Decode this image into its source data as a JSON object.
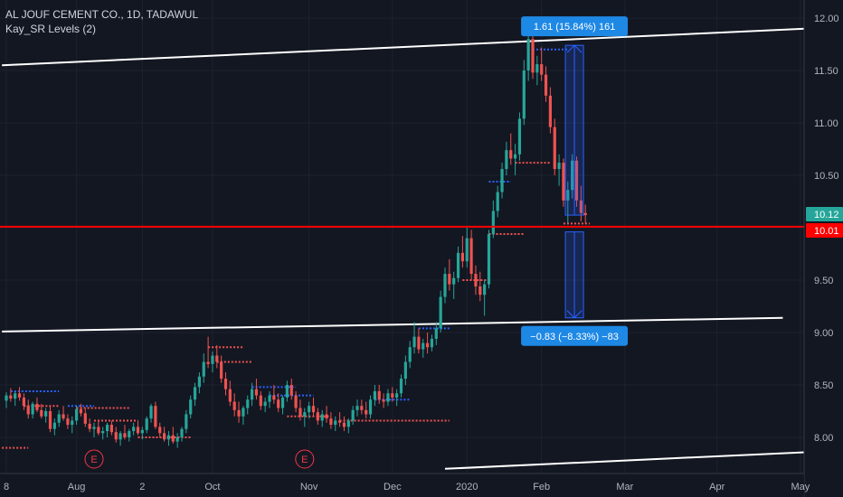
{
  "header": {
    "symbol_line": "AL JOUF CEMENT CO., 1D, TADAWUL",
    "indicator_line": "Kay_SR Levels (2)"
  },
  "price_tags": {
    "last": "10.12",
    "level": "10.01"
  },
  "measure_boxes": {
    "up": "1.61 (15.84%) 161",
    "down": "−0.83 (−8.33%) −83"
  },
  "earnings_marker": "E",
  "colors": {
    "background": "#131722",
    "up": "#26a69a",
    "down": "#ef5350",
    "level_line": "#ff0000",
    "trend_line": "#ffffff",
    "measure": "#2962ff",
    "sr_support": "#ef5350",
    "sr_resistance": "#2962ff"
  },
  "chart_data": {
    "type": "candlestick",
    "ylim": [
      7.72,
      12.12
    ],
    "yticks": [
      "8.00",
      "8.50",
      "9.00",
      "9.50",
      "10.00",
      "10.50",
      "11.00",
      "11.50",
      "12.00"
    ],
    "ytick_values": [
      8.0,
      8.5,
      9.0,
      9.5,
      10.0,
      10.5,
      11.0,
      11.5,
      12.0
    ],
    "xticks": [
      "8",
      "Aug",
      "2",
      "Oct",
      "Nov",
      "Dec",
      "2020",
      "Feb",
      "Mar",
      "Apr",
      "May"
    ],
    "xtick_days": [
      0,
      16,
      31,
      47,
      69,
      88,
      105,
      122,
      141,
      162,
      181
    ],
    "candles": [
      [
        0,
        8.35,
        8.43,
        8.28,
        8.4
      ],
      [
        1,
        8.4,
        8.47,
        8.34,
        8.37
      ],
      [
        2,
        8.37,
        8.44,
        8.3,
        8.42
      ],
      [
        3,
        8.42,
        8.48,
        8.35,
        8.38
      ],
      [
        4,
        8.38,
        8.42,
        8.26,
        8.3
      ],
      [
        5,
        8.3,
        8.36,
        8.18,
        8.22
      ],
      [
        6,
        8.22,
        8.34,
        8.18,
        8.32
      ],
      [
        7,
        8.32,
        8.38,
        8.24,
        8.26
      ],
      [
        8,
        8.26,
        8.32,
        8.18,
        8.2
      ],
      [
        9,
        8.2,
        8.28,
        8.14,
        8.25
      ],
      [
        10,
        8.25,
        8.3,
        8.05,
        8.08
      ],
      [
        11,
        8.08,
        8.18,
        8.02,
        8.14
      ],
      [
        12,
        8.14,
        8.26,
        8.1,
        8.22
      ],
      [
        13,
        8.22,
        8.3,
        8.16,
        8.18
      ],
      [
        14,
        8.18,
        8.22,
        8.08,
        8.12
      ],
      [
        15,
        8.12,
        8.2,
        8.04,
        8.16
      ],
      [
        16,
        8.16,
        8.3,
        8.12,
        8.27
      ],
      [
        17,
        8.27,
        8.32,
        8.2,
        8.23
      ],
      [
        18,
        8.23,
        8.28,
        8.1,
        8.13
      ],
      [
        19,
        8.13,
        8.18,
        8.05,
        8.08
      ],
      [
        20,
        8.08,
        8.14,
        8.0,
        8.1
      ],
      [
        21,
        8.1,
        8.16,
        8.02,
        8.04
      ],
      [
        22,
        8.04,
        8.1,
        7.98,
        8.06
      ],
      [
        23,
        8.06,
        8.14,
        8.0,
        8.12
      ],
      [
        24,
        8.12,
        8.16,
        8.02,
        8.05
      ],
      [
        25,
        8.05,
        8.1,
        7.95,
        7.98
      ],
      [
        26,
        7.98,
        8.06,
        7.92,
        8.04
      ],
      [
        27,
        8.04,
        8.12,
        7.98,
        8.0
      ],
      [
        28,
        8.0,
        8.08,
        7.96,
        8.06
      ],
      [
        29,
        8.06,
        8.14,
        8.02,
        8.1
      ],
      [
        30,
        8.1,
        8.16,
        8.02,
        8.04
      ],
      [
        31,
        8.04,
        8.1,
        7.98,
        8.07
      ],
      [
        32,
        8.07,
        8.2,
        8.04,
        8.18
      ],
      [
        33,
        8.18,
        8.32,
        8.14,
        8.3
      ],
      [
        34,
        8.3,
        8.34,
        8.08,
        8.1
      ],
      [
        35,
        8.1,
        8.14,
        8.0,
        8.04
      ],
      [
        36,
        8.04,
        8.1,
        7.96,
        7.98
      ],
      [
        37,
        7.98,
        8.06,
        7.92,
        8.02
      ],
      [
        38,
        8.02,
        8.1,
        7.94,
        7.96
      ],
      [
        39,
        7.96,
        8.04,
        7.9,
        8.0
      ],
      [
        40,
        8.0,
        8.1,
        7.96,
        8.08
      ],
      [
        41,
        8.08,
        8.26,
        8.04,
        8.22
      ],
      [
        42,
        8.22,
        8.4,
        8.18,
        8.36
      ],
      [
        43,
        8.36,
        8.52,
        8.3,
        8.48
      ],
      [
        44,
        8.48,
        8.62,
        8.42,
        8.58
      ],
      [
        45,
        8.58,
        8.8,
        8.52,
        8.72
      ],
      [
        46,
        8.72,
        8.96,
        8.66,
        8.7
      ],
      [
        47,
        8.7,
        8.82,
        8.62,
        8.78
      ],
      [
        48,
        8.78,
        8.88,
        8.66,
        8.72
      ],
      [
        49,
        8.72,
        8.78,
        8.52,
        8.56
      ],
      [
        50,
        8.56,
        8.62,
        8.4,
        8.46
      ],
      [
        51,
        8.46,
        8.54,
        8.3,
        8.34
      ],
      [
        52,
        8.34,
        8.42,
        8.2,
        8.26
      ],
      [
        53,
        8.26,
        8.34,
        8.14,
        8.2
      ],
      [
        54,
        8.2,
        8.3,
        8.12,
        8.28
      ],
      [
        55,
        8.28,
        8.4,
        8.22,
        8.36
      ],
      [
        56,
        8.36,
        8.52,
        8.3,
        8.46
      ],
      [
        57,
        8.46,
        8.56,
        8.36,
        8.4
      ],
      [
        58,
        8.4,
        8.44,
        8.26,
        8.3
      ],
      [
        59,
        8.3,
        8.38,
        8.24,
        8.34
      ],
      [
        60,
        8.34,
        8.44,
        8.28,
        8.4
      ],
      [
        61,
        8.4,
        8.5,
        8.32,
        8.36
      ],
      [
        62,
        8.36,
        8.42,
        8.24,
        8.28
      ],
      [
        63,
        8.28,
        8.4,
        8.22,
        8.38
      ],
      [
        64,
        8.38,
        8.54,
        8.34,
        8.5
      ],
      [
        65,
        8.5,
        8.56,
        8.36,
        8.4
      ],
      [
        66,
        8.4,
        8.44,
        8.24,
        8.28
      ],
      [
        67,
        8.28,
        8.36,
        8.16,
        8.2
      ],
      [
        68,
        8.2,
        8.28,
        8.1,
        8.24
      ],
      [
        69,
        8.24,
        8.34,
        8.18,
        8.3
      ],
      [
        70,
        8.3,
        8.38,
        8.2,
        8.24
      ],
      [
        71,
        8.24,
        8.28,
        8.12,
        8.16
      ],
      [
        72,
        8.16,
        8.26,
        8.1,
        8.22
      ],
      [
        73,
        8.22,
        8.3,
        8.14,
        8.18
      ],
      [
        74,
        8.18,
        8.24,
        8.08,
        8.12
      ],
      [
        75,
        8.12,
        8.2,
        8.06,
        8.16
      ],
      [
        76,
        8.16,
        8.24,
        8.1,
        8.14
      ],
      [
        77,
        8.14,
        8.2,
        8.06,
        8.1
      ],
      [
        78,
        8.1,
        8.18,
        8.04,
        8.16
      ],
      [
        79,
        8.16,
        8.3,
        8.12,
        8.26
      ],
      [
        80,
        8.26,
        8.36,
        8.2,
        8.3
      ],
      [
        81,
        8.3,
        8.36,
        8.22,
        8.26
      ],
      [
        82,
        8.26,
        8.34,
        8.18,
        8.22
      ],
      [
        83,
        8.22,
        8.4,
        8.18,
        8.36
      ],
      [
        84,
        8.36,
        8.5,
        8.3,
        8.44
      ],
      [
        85,
        8.44,
        8.5,
        8.32,
        8.36
      ],
      [
        86,
        8.36,
        8.42,
        8.28,
        8.34
      ],
      [
        87,
        8.34,
        8.46,
        8.3,
        8.42
      ],
      [
        88,
        8.42,
        8.48,
        8.34,
        8.38
      ],
      [
        89,
        8.38,
        8.46,
        8.3,
        8.42
      ],
      [
        90,
        8.42,
        8.6,
        8.38,
        8.56
      ],
      [
        91,
        8.56,
        8.78,
        8.5,
        8.72
      ],
      [
        92,
        8.72,
        8.92,
        8.66,
        8.86
      ],
      [
        93,
        8.86,
        9.1,
        8.8,
        8.96
      ],
      [
        94,
        8.96,
        9.04,
        8.8,
        8.84
      ],
      [
        95,
        8.84,
        8.94,
        8.76,
        8.9
      ],
      [
        96,
        8.9,
        9.0,
        8.8,
        8.86
      ],
      [
        97,
        8.86,
        8.98,
        8.82,
        8.94
      ],
      [
        98,
        8.94,
        9.1,
        8.88,
        9.04
      ],
      [
        99,
        9.04,
        9.4,
        9.0,
        9.34
      ],
      [
        100,
        9.34,
        9.62,
        9.28,
        9.56
      ],
      [
        101,
        9.56,
        9.7,
        9.4,
        9.46
      ],
      [
        102,
        9.46,
        9.58,
        9.32,
        9.52
      ],
      [
        103,
        9.52,
        9.82,
        9.48,
        9.76
      ],
      [
        104,
        9.76,
        9.92,
        9.62,
        9.68
      ],
      [
        105,
        9.68,
        10.0,
        9.62,
        9.9
      ],
      [
        106,
        9.9,
        9.98,
        9.5,
        9.56
      ],
      [
        107,
        9.56,
        9.64,
        9.36,
        9.44
      ],
      [
        108,
        9.44,
        9.58,
        9.3,
        9.36
      ],
      [
        109,
        9.36,
        9.5,
        9.16,
        9.46
      ],
      [
        110,
        9.46,
        9.98,
        9.42,
        9.94
      ],
      [
        111,
        9.94,
        10.26,
        9.9,
        10.16
      ],
      [
        112,
        10.16,
        10.4,
        10.1,
        10.34
      ],
      [
        113,
        10.34,
        10.62,
        10.28,
        10.56
      ],
      [
        114,
        10.56,
        10.82,
        10.5,
        10.74
      ],
      [
        115,
        10.74,
        10.9,
        10.6,
        10.66
      ],
      [
        116,
        10.66,
        10.8,
        10.5,
        10.7
      ],
      [
        117,
        10.7,
        11.1,
        10.64,
        11.04
      ],
      [
        118,
        11.04,
        11.6,
        10.98,
        11.5
      ],
      [
        119,
        11.5,
        11.95,
        11.4,
        11.8
      ],
      [
        120,
        11.8,
        11.9,
        11.42,
        11.48
      ],
      [
        121,
        11.48,
        11.64,
        11.36,
        11.56
      ],
      [
        122,
        11.56,
        11.72,
        11.4,
        11.46
      ],
      [
        123,
        11.46,
        11.54,
        11.2,
        11.26
      ],
      [
        124,
        11.26,
        11.34,
        10.9,
        10.96
      ],
      [
        125,
        10.96,
        11.04,
        10.5,
        10.56
      ],
      [
        126,
        10.56,
        10.7,
        10.4,
        10.62
      ],
      [
        127,
        10.62,
        10.66,
        10.2,
        10.26
      ],
      [
        128,
        10.26,
        10.44,
        10.04,
        10.36
      ],
      [
        129,
        10.36,
        10.7,
        10.28,
        10.64
      ],
      [
        130,
        10.64,
        10.68,
        10.2,
        10.26
      ],
      [
        131,
        10.26,
        10.4,
        10.06,
        10.14
      ],
      [
        132,
        10.14,
        10.22,
        10.04,
        10.12
      ]
    ],
    "horizontal_level": 10.01,
    "last_price": 10.12,
    "trend_lines": [
      {
        "from": [
          -1,
          11.55
        ],
        "to": [
          183,
          11.9
        ]
      },
      {
        "from": [
          -1,
          9.01
        ],
        "to": [
          177,
          9.14
        ]
      },
      {
        "from": [
          100,
          7.7
        ],
        "to": [
          183,
          7.86
        ]
      }
    ],
    "sr_segments": [
      {
        "kind": "support",
        "start": -1,
        "end": 5,
        "value": 7.9
      },
      {
        "kind": "resistance",
        "start": 1,
        "end": 12,
        "value": 8.44
      },
      {
        "kind": "support",
        "start": 4,
        "end": 12,
        "value": 8.3
      },
      {
        "kind": "resistance",
        "start": 14,
        "end": 20,
        "value": 8.3
      },
      {
        "kind": "support",
        "start": 16,
        "end": 28,
        "value": 8.28
      },
      {
        "kind": "support",
        "start": 20,
        "end": 30,
        "value": 8.16
      },
      {
        "kind": "support",
        "start": 30,
        "end": 42,
        "value": 8.0
      },
      {
        "kind": "support",
        "start": 46,
        "end": 54,
        "value": 8.86
      },
      {
        "kind": "support",
        "start": 48,
        "end": 56,
        "value": 8.72
      },
      {
        "kind": "resistance",
        "start": 56,
        "end": 66,
        "value": 8.48
      },
      {
        "kind": "resistance",
        "start": 60,
        "end": 70,
        "value": 8.4
      },
      {
        "kind": "support",
        "start": 64,
        "end": 74,
        "value": 8.2
      },
      {
        "kind": "support",
        "start": 76,
        "end": 101,
        "value": 8.16
      },
      {
        "kind": "resistance",
        "start": 84,
        "end": 92,
        "value": 8.36
      },
      {
        "kind": "resistance",
        "start": 94,
        "end": 101,
        "value": 9.04
      },
      {
        "kind": "support",
        "start": 104,
        "end": 110,
        "value": 9.5
      },
      {
        "kind": "support",
        "start": 110,
        "end": 118,
        "value": 9.94
      },
      {
        "kind": "resistance",
        "start": 110,
        "end": 115,
        "value": 10.44
      },
      {
        "kind": "support",
        "start": 116,
        "end": 124,
        "value": 10.62
      },
      {
        "kind": "resistance",
        "start": 120,
        "end": 128,
        "value": 11.7
      },
      {
        "kind": "support",
        "start": 127,
        "end": 133,
        "value": 10.04
      }
    ],
    "measure_up": {
      "day": 129.5,
      "from": 10.12,
      "to": 11.74
    },
    "measure_down": {
      "day": 129.5,
      "from": 9.96,
      "to": 9.14
    },
    "earnings_days": [
      20,
      68
    ]
  }
}
